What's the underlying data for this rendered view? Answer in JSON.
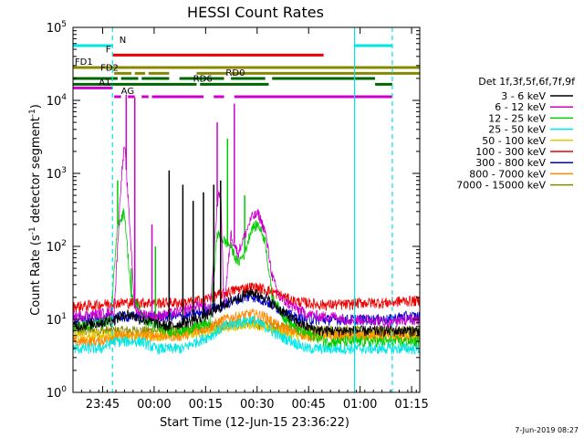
{
  "chart_data": {
    "type": "line",
    "title": "HESSI Count Rates",
    "xlabel": "Start Time (12-Jun-15 23:36:22)",
    "ylabel": "Count Rate (s⁻¹ detector segment⁻¹)",
    "ylabel_main": "Count Rate (s",
    "ylabel_sup1": "-1",
    "ylabel_mid": " detector segment",
    "ylabel_sup2": "-1",
    "ylabel_end": ")",
    "yscale": "log",
    "x_unit": "minutes after 23:36:22",
    "xlim": [
      0,
      101
    ],
    "ylim_exp": [
      0,
      5
    ],
    "x_ticks": [
      {
        "label": "23:45",
        "x": 8.63
      },
      {
        "label": "00:00",
        "x": 23.63
      },
      {
        "label": "00:15",
        "x": 38.63
      },
      {
        "label": "00:30",
        "x": 53.63
      },
      {
        "label": "00:45",
        "x": 68.63
      },
      {
        "label": "01:00",
        "x": 83.63
      },
      {
        "label": "01:15",
        "x": 98.63
      }
    ],
    "y_ticks": [
      {
        "base": "10",
        "exp": "0",
        "e": 0
      },
      {
        "base": "10",
        "exp": "1",
        "e": 1
      },
      {
        "base": "10",
        "exp": "2",
        "e": 2
      },
      {
        "base": "10",
        "exp": "3",
        "e": 3
      },
      {
        "base": "10",
        "exp": "4",
        "e": 4
      },
      {
        "base": "10",
        "exp": "5",
        "e": 5
      }
    ],
    "legend_title": "Det 1f,3f,5f,6f,7f,9f",
    "legend_position": "right",
    "series": [
      {
        "name": "3 - 6 keV",
        "color": "#000000",
        "points": [
          [
            0,
            8
          ],
          [
            8,
            9
          ],
          [
            12,
            10
          ],
          [
            16,
            12
          ],
          [
            20,
            10
          ],
          [
            24,
            9
          ],
          [
            28,
            8
          ],
          [
            32,
            9
          ],
          [
            36,
            10
          ],
          [
            40,
            12
          ],
          [
            44,
            16
          ],
          [
            48,
            20
          ],
          [
            52,
            24
          ],
          [
            56,
            20
          ],
          [
            60,
            14
          ],
          [
            64,
            10
          ],
          [
            68,
            8
          ],
          [
            72,
            7
          ],
          [
            76,
            7
          ],
          [
            80,
            7
          ],
          [
            84,
            7
          ],
          [
            88,
            7
          ],
          [
            92,
            7
          ],
          [
            96,
            7
          ],
          [
            101,
            7
          ]
        ],
        "spikes": [
          [
            28,
            1100
          ],
          [
            32,
            700
          ],
          [
            35,
            420
          ],
          [
            38,
            550
          ],
          [
            41,
            700
          ],
          [
            43,
            800
          ]
        ]
      },
      {
        "name": "6 - 12 keV",
        "color": "#cc00cc",
        "points": [
          [
            0,
            11
          ],
          [
            8,
            12
          ],
          [
            12,
            13
          ],
          [
            14,
            800
          ],
          [
            15,
            2500
          ],
          [
            16,
            500
          ],
          [
            18,
            14
          ],
          [
            20,
            12
          ],
          [
            24,
            11
          ],
          [
            28,
            12
          ],
          [
            32,
            13
          ],
          [
            36,
            16
          ],
          [
            40,
            14
          ],
          [
            42,
            400
          ],
          [
            43,
            600
          ],
          [
            44,
            14
          ],
          [
            46,
            150
          ],
          [
            48,
            80
          ],
          [
            50,
            140
          ],
          [
            52,
            250
          ],
          [
            54,
            280
          ],
          [
            56,
            160
          ],
          [
            58,
            40
          ],
          [
            60,
            20
          ],
          [
            64,
            15
          ],
          [
            68,
            12
          ],
          [
            72,
            11
          ],
          [
            76,
            11
          ],
          [
            80,
            10
          ],
          [
            84,
            10
          ],
          [
            88,
            10
          ],
          [
            92,
            9
          ],
          [
            96,
            10
          ],
          [
            101,
            10
          ]
        ],
        "spikes": [
          [
            15.5,
            12000
          ],
          [
            18,
            11000
          ],
          [
            23,
            200
          ],
          [
            28,
            180
          ],
          [
            42,
            5000
          ],
          [
            47,
            9000
          ]
        ]
      },
      {
        "name": "12 - 25 keV",
        "color": "#00cc00",
        "points": [
          [
            0,
            8
          ],
          [
            8,
            9
          ],
          [
            11,
            10
          ],
          [
            13,
            200
          ],
          [
            15,
            300
          ],
          [
            17,
            20
          ],
          [
            19,
            15
          ],
          [
            21,
            10
          ],
          [
            24,
            8
          ],
          [
            28,
            7
          ],
          [
            32,
            7
          ],
          [
            36,
            8
          ],
          [
            40,
            9
          ],
          [
            42,
            150
          ],
          [
            44,
            120
          ],
          [
            46,
            100
          ],
          [
            48,
            60
          ],
          [
            50,
            80
          ],
          [
            52,
            180
          ],
          [
            54,
            200
          ],
          [
            56,
            120
          ],
          [
            58,
            20
          ],
          [
            62,
            10
          ],
          [
            66,
            7
          ],
          [
            70,
            6
          ],
          [
            74,
            5
          ],
          [
            78,
            5
          ],
          [
            82,
            5
          ],
          [
            86,
            5
          ],
          [
            90,
            5
          ],
          [
            94,
            5
          ],
          [
            98,
            5
          ],
          [
            101,
            5
          ]
        ],
        "spikes": [
          [
            13,
            800
          ],
          [
            17,
            50
          ],
          [
            24,
            100
          ],
          [
            45,
            3000
          ],
          [
            50,
            500
          ]
        ]
      },
      {
        "name": "25 - 50 keV",
        "color": "#00e5e5",
        "points": [
          [
            0,
            4
          ],
          [
            8,
            4
          ],
          [
            12,
            5
          ],
          [
            16,
            5
          ],
          [
            20,
            5
          ],
          [
            24,
            4
          ],
          [
            28,
            4
          ],
          [
            32,
            4
          ],
          [
            36,
            5
          ],
          [
            40,
            6
          ],
          [
            44,
            8
          ],
          [
            48,
            9
          ],
          [
            52,
            10
          ],
          [
            56,
            8
          ],
          [
            60,
            6
          ],
          [
            64,
            5
          ],
          [
            68,
            4
          ],
          [
            72,
            4
          ],
          [
            76,
            4
          ],
          [
            80,
            4
          ],
          [
            84,
            4
          ],
          [
            88,
            4
          ],
          [
            92,
            4
          ],
          [
            96,
            4
          ],
          [
            101,
            4
          ]
        ]
      },
      {
        "name": "50 - 100 keV",
        "color": "#e5c800",
        "points": [
          [
            0,
            6
          ],
          [
            10,
            6
          ],
          [
            20,
            6
          ],
          [
            30,
            6
          ],
          [
            40,
            7
          ],
          [
            50,
            9
          ],
          [
            56,
            8
          ],
          [
            64,
            6
          ],
          [
            76,
            6
          ],
          [
            90,
            6
          ],
          [
            101,
            6
          ]
        ]
      },
      {
        "name": "100 - 300 keV",
        "color": "#ee0000",
        "points": [
          [
            0,
            15
          ],
          [
            8,
            16
          ],
          [
            12,
            17
          ],
          [
            16,
            17
          ],
          [
            20,
            17
          ],
          [
            24,
            17
          ],
          [
            28,
            17
          ],
          [
            32,
            17
          ],
          [
            36,
            18
          ],
          [
            40,
            20
          ],
          [
            44,
            23
          ],
          [
            48,
            26
          ],
          [
            52,
            28
          ],
          [
            56,
            26
          ],
          [
            60,
            22
          ],
          [
            64,
            18
          ],
          [
            68,
            17
          ],
          [
            72,
            16
          ],
          [
            76,
            16
          ],
          [
            80,
            16
          ],
          [
            84,
            17
          ],
          [
            88,
            17
          ],
          [
            92,
            17
          ],
          [
            96,
            18
          ],
          [
            101,
            18
          ]
        ]
      },
      {
        "name": "300 - 800 keV",
        "color": "#0000cc",
        "points": [
          [
            0,
            10
          ],
          [
            8,
            10
          ],
          [
            12,
            11
          ],
          [
            16,
            11
          ],
          [
            20,
            11
          ],
          [
            24,
            11
          ],
          [
            28,
            11
          ],
          [
            32,
            11
          ],
          [
            36,
            12
          ],
          [
            40,
            14
          ],
          [
            44,
            16
          ],
          [
            48,
            19
          ],
          [
            52,
            21
          ],
          [
            56,
            18
          ],
          [
            60,
            14
          ],
          [
            64,
            11
          ],
          [
            68,
            10
          ],
          [
            72,
            10
          ],
          [
            76,
            10
          ],
          [
            80,
            10
          ],
          [
            84,
            10
          ],
          [
            88,
            10
          ],
          [
            92,
            10
          ],
          [
            96,
            11
          ],
          [
            101,
            11
          ]
        ]
      },
      {
        "name": "800 - 7000 keV",
        "color": "#ff8800",
        "points": [
          [
            0,
            5
          ],
          [
            8,
            5
          ],
          [
            12,
            6
          ],
          [
            16,
            6
          ],
          [
            20,
            6
          ],
          [
            24,
            6
          ],
          [
            28,
            6
          ],
          [
            32,
            6
          ],
          [
            36,
            7
          ],
          [
            40,
            8
          ],
          [
            44,
            10
          ],
          [
            48,
            11
          ],
          [
            52,
            12
          ],
          [
            56,
            11
          ],
          [
            60,
            8
          ],
          [
            64,
            7
          ],
          [
            68,
            6
          ],
          [
            72,
            6
          ],
          [
            76,
            6
          ],
          [
            80,
            6
          ],
          [
            84,
            6
          ],
          [
            88,
            6
          ],
          [
            92,
            6
          ],
          [
            96,
            6
          ],
          [
            101,
            6
          ]
        ]
      },
      {
        "name": "7000 - 15000 keV",
        "color": "#888800",
        "points": [
          [
            0,
            7
          ],
          [
            10,
            7
          ],
          [
            20,
            7
          ],
          [
            30,
            7
          ],
          [
            40,
            8
          ],
          [
            50,
            9
          ],
          [
            60,
            8
          ],
          [
            70,
            7
          ],
          [
            80,
            7
          ],
          [
            90,
            7
          ],
          [
            101,
            7
          ]
        ]
      }
    ],
    "vlines": [
      {
        "x": 11.5,
        "color": "#00e5e5",
        "style": "dashed"
      },
      {
        "x": 82.0,
        "color": "#00e5e5",
        "style": "solid"
      },
      {
        "x": 93.0,
        "color": "#00e5e5",
        "style": "dashed"
      }
    ],
    "flag_bars": [
      {
        "label": "N",
        "color": "#00e5e5",
        "log_y": 4.75,
        "label_x": 13.5,
        "segments": [
          [
            0,
            11.5
          ],
          [
            82,
            93
          ]
        ]
      },
      {
        "label": "F",
        "color": "#ee0000",
        "log_y": 4.62,
        "label_x": 9.5,
        "segments": [
          [
            11.5,
            73
          ]
        ]
      },
      {
        "label": "FD1",
        "color": "#888800",
        "log_y": 4.45,
        "label_x": 0.5,
        "segments": [
          [
            0,
            101
          ]
        ]
      },
      {
        "label": "FD2",
        "color": "#888800",
        "log_y": 4.37,
        "label_x": 8,
        "segments": [
          [
            12,
            17
          ],
          [
            18,
            21
          ],
          [
            22,
            28
          ],
          [
            36,
            45
          ],
          [
            46,
            101
          ]
        ]
      },
      {
        "label": "RD0",
        "color": "#006600",
        "log_y": 4.3,
        "label_x": 44.5,
        "segments": [
          [
            0,
            13
          ],
          [
            14,
            19
          ],
          [
            20,
            28
          ],
          [
            31,
            44
          ],
          [
            46,
            56
          ],
          [
            58,
            88
          ]
        ]
      },
      {
        "label": "RD6",
        "color": "#006600",
        "log_y": 4.22,
        "label_x": 35,
        "segments": [
          [
            0,
            36
          ],
          [
            37,
            57
          ],
          [
            88,
            93
          ]
        ]
      },
      {
        "label": "AG",
        "color": "#cc00cc",
        "log_y": 4.05,
        "label_x": 14,
        "segments": [
          [
            12,
            14
          ],
          [
            16,
            18
          ],
          [
            20,
            22
          ],
          [
            23,
            38
          ],
          [
            41,
            44
          ],
          [
            47,
            93
          ]
        ]
      },
      {
        "label": "A1",
        "color": "#cc00cc",
        "log_y": 4.17,
        "label_x": 7.5,
        "segments": [
          [
            0,
            11.5
          ]
        ]
      }
    ],
    "grid": false
  },
  "footer_date": "7-Jun-2019 08:27"
}
